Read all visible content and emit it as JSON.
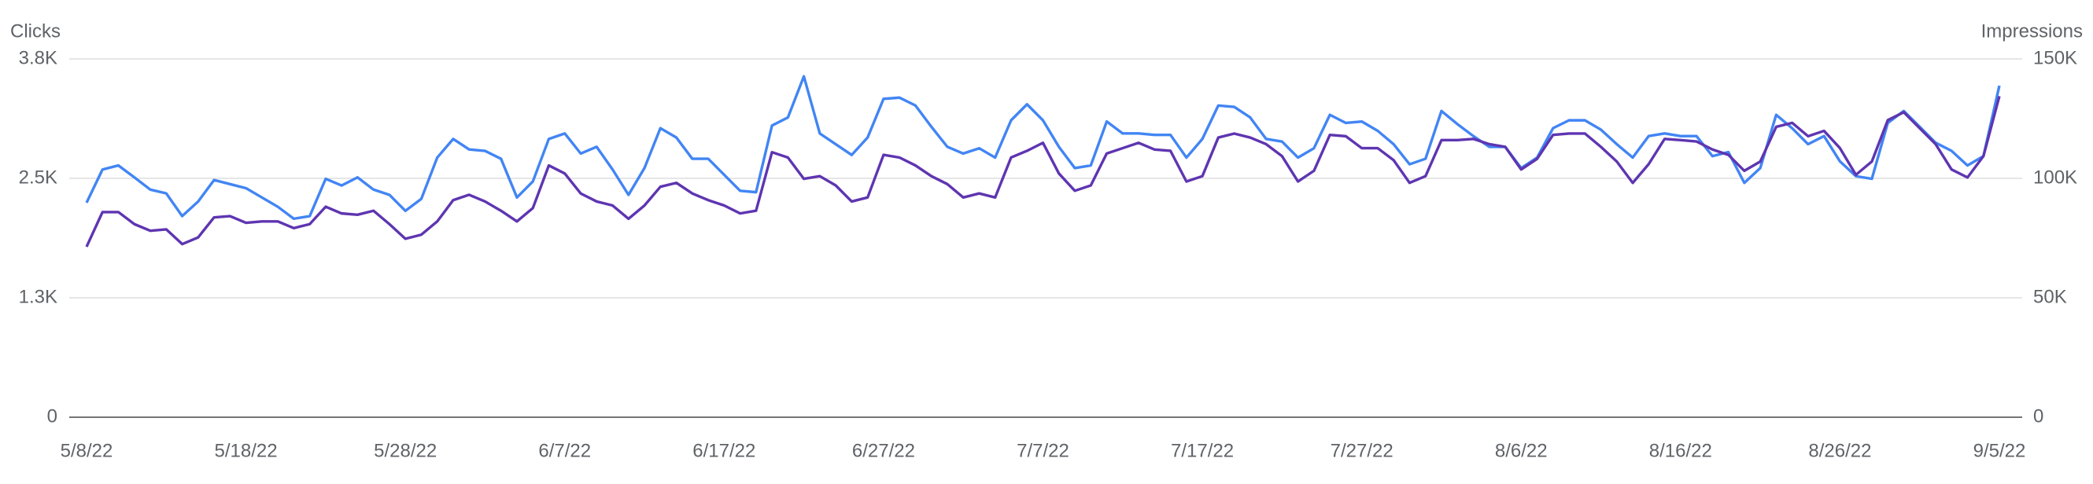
{
  "chart_data": {
    "type": "line",
    "categories": [
      "5/8/22",
      null,
      null,
      null,
      null,
      null,
      null,
      null,
      null,
      null,
      "5/18/22",
      null,
      null,
      null,
      null,
      null,
      null,
      null,
      null,
      null,
      "5/28/22",
      null,
      null,
      null,
      null,
      null,
      null,
      null,
      null,
      null,
      "6/7/22",
      null,
      null,
      null,
      null,
      null,
      null,
      null,
      null,
      null,
      "6/17/22",
      null,
      null,
      null,
      null,
      null,
      null,
      null,
      null,
      null,
      "6/27/22",
      null,
      null,
      null,
      null,
      null,
      null,
      null,
      null,
      null,
      "7/7/22",
      null,
      null,
      null,
      null,
      null,
      null,
      null,
      null,
      null,
      "7/17/22",
      null,
      null,
      null,
      null,
      null,
      null,
      null,
      null,
      null,
      "7/27/22",
      null,
      null,
      null,
      null,
      null,
      null,
      null,
      null,
      null,
      "8/6/22",
      null,
      null,
      null,
      null,
      null,
      null,
      null,
      null,
      null,
      "8/16/22",
      null,
      null,
      null,
      null,
      null,
      null,
      null,
      null,
      null,
      "8/26/22",
      null,
      null,
      null,
      null,
      null,
      null,
      null,
      null,
      null,
      "9/5/22"
    ],
    "series": [
      {
        "name": "Clicks",
        "color": "#5e35b1",
        "axis": "y",
        "values": [
          1784,
          2147,
          2147,
          2021,
          1952,
          1966,
          1812,
          1882,
          2091,
          2105,
          2035,
          2049,
          2049,
          1979,
          2021,
          2203,
          2133,
          2119,
          2161,
          2021,
          1868,
          1910,
          2049,
          2272,
          2328,
          2258,
          2161,
          2049,
          2189,
          2635,
          2551,
          2342,
          2258,
          2216,
          2077,
          2216,
          2412,
          2453,
          2342,
          2272,
          2216,
          2133,
          2161,
          2774,
          2718,
          2495,
          2523,
          2426,
          2258,
          2300,
          2746,
          2718,
          2635,
          2523,
          2440,
          2300,
          2342,
          2300,
          2718,
          2788,
          2872,
          2551,
          2370,
          2426,
          2760,
          2816,
          2872,
          2802,
          2788,
          2467,
          2523,
          2927,
          2969,
          2927,
          2858,
          2732,
          2467,
          2579,
          2955,
          2941,
          2816,
          2816,
          2690,
          2453,
          2523,
          2900,
          2900,
          2913,
          2858,
          2830,
          2593,
          2704,
          2955,
          2969,
          2969,
          2830,
          2676,
          2453,
          2649,
          2913,
          2900,
          2886,
          2802,
          2746,
          2579,
          2676,
          3039,
          3081,
          2941,
          2997,
          2816,
          2537,
          2676,
          3109,
          3192,
          3025,
          2858,
          2593,
          2509,
          2732,
          3360
        ]
      },
      {
        "name": "Impressions",
        "color": "#4285f4",
        "axis": "y2",
        "values": [
          89800,
          103700,
          105400,
          100400,
          95300,
          93700,
          84200,
          90300,
          99300,
          97600,
          95900,
          92000,
          88100,
          83100,
          84200,
          99800,
          97000,
          100400,
          95300,
          93100,
          86400,
          91400,
          108700,
          116500,
          112100,
          111500,
          108200,
          92000,
          98700,
          116500,
          118800,
          110400,
          113200,
          103700,
          93100,
          104300,
          121000,
          117100,
          108200,
          108200,
          101500,
          94800,
          94200,
          122100,
          125500,
          142700,
          118800,
          114300,
          109800,
          117100,
          133300,
          133800,
          130500,
          121600,
          113200,
          110400,
          112600,
          108700,
          124300,
          131000,
          124300,
          113200,
          104300,
          105400,
          123800,
          118800,
          118800,
          118200,
          118200,
          108700,
          116500,
          130500,
          129900,
          125500,
          116500,
          115400,
          108700,
          112600,
          126600,
          123200,
          123800,
          119900,
          114300,
          105900,
          108200,
          128200,
          122700,
          117700,
          113200,
          113200,
          104300,
          108700,
          121000,
          124300,
          124300,
          120400,
          114300,
          108700,
          117700,
          118800,
          117700,
          117700,
          109300,
          111000,
          98100,
          104300,
          126600,
          121000,
          114300,
          117700,
          107100,
          100900,
          99800,
          123200,
          128200,
          121600,
          114900,
          111500,
          105400,
          109300,
          138800
        ]
      }
    ],
    "ylim": [
      0,
      3750
    ],
    "yticks": [
      0,
      {
        "value": 1250,
        "label": "1.3K"
      },
      {
        "value": 2500,
        "label": "2.5K"
      },
      {
        "value": 3750,
        "label": "3.8K"
      }
    ],
    "y2lim": [
      0,
      150000
    ],
    "y2ticks": [
      0,
      {
        "value": 50000,
        "label": "50K"
      },
      {
        "value": 100000,
        "label": "100K"
      },
      {
        "value": 150000,
        "label": "150K"
      }
    ],
    "grid": true
  }
}
